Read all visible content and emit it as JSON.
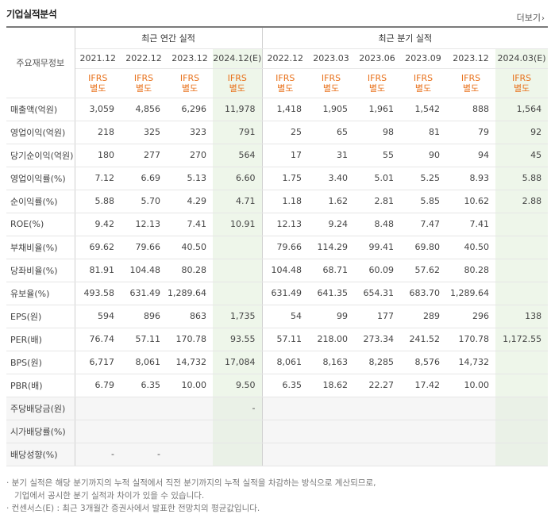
{
  "section_title": "기업실적분석",
  "more_label": "더보기",
  "header": {
    "label_col": "주요재무정보",
    "annual_title": "최근 연간 실적",
    "quarterly_title": "최근 분기 실적",
    "annual_periods": [
      "2021.12",
      "2022.12",
      "2023.12",
      "2024.12(E)"
    ],
    "quarterly_periods": [
      "2022.12",
      "2023.03",
      "2023.06",
      "2023.09",
      "2023.12",
      "2024.03(E)"
    ],
    "ifrs_line1": "IFRS",
    "ifrs_line2": "별도"
  },
  "rows": [
    {
      "label": "매출액(억원)",
      "values": [
        "3,059",
        "4,856",
        "6,296",
        "11,978",
        "1,418",
        "1,905",
        "1,961",
        "1,542",
        "888",
        "1,564"
      ]
    },
    {
      "label": "영업이익(억원)",
      "values": [
        "218",
        "325",
        "323",
        "791",
        "25",
        "65",
        "98",
        "81",
        "79",
        "92"
      ]
    },
    {
      "label": "당기순이익(억원)",
      "values": [
        "180",
        "277",
        "270",
        "564",
        "17",
        "31",
        "55",
        "90",
        "94",
        "45"
      ]
    },
    {
      "label": "영업이익률(%)",
      "values": [
        "7.12",
        "6.69",
        "5.13",
        "6.60",
        "1.75",
        "3.40",
        "5.01",
        "5.25",
        "8.93",
        "5.88"
      ]
    },
    {
      "label": "순이익률(%)",
      "values": [
        "5.88",
        "5.70",
        "4.29",
        "4.71",
        "1.18",
        "1.62",
        "2.81",
        "5.85",
        "10.62",
        "2.88"
      ]
    },
    {
      "label": "ROE(%)",
      "values": [
        "9.42",
        "12.13",
        "7.41",
        "10.91",
        "12.13",
        "9.24",
        "8.48",
        "7.47",
        "7.41",
        ""
      ]
    },
    {
      "label": "부채비율(%)",
      "values": [
        "69.62",
        "79.66",
        "40.50",
        "",
        "79.66",
        "114.29",
        "99.41",
        "69.80",
        "40.50",
        ""
      ]
    },
    {
      "label": "당좌비율(%)",
      "values": [
        "81.91",
        "104.48",
        "80.28",
        "",
        "104.48",
        "68.71",
        "60.09",
        "57.62",
        "80.28",
        ""
      ]
    },
    {
      "label": "유보율(%)",
      "values": [
        "493.58",
        "631.49",
        "1,289.64",
        "",
        "631.49",
        "641.35",
        "654.31",
        "683.70",
        "1,289.64",
        ""
      ]
    },
    {
      "label": "EPS(원)",
      "values": [
        "594",
        "896",
        "863",
        "1,735",
        "54",
        "99",
        "177",
        "289",
        "296",
        "138"
      ]
    },
    {
      "label": "PER(배)",
      "values": [
        "76.74",
        "57.11",
        "170.78",
        "93.55",
        "57.11",
        "218.00",
        "273.34",
        "241.52",
        "170.78",
        "1,172.55"
      ]
    },
    {
      "label": "BPS(원)",
      "values": [
        "6,717",
        "8,061",
        "14,732",
        "17,084",
        "8,061",
        "8,163",
        "8,285",
        "8,576",
        "14,732",
        ""
      ]
    },
    {
      "label": "PBR(배)",
      "values": [
        "6.79",
        "6.35",
        "10.00",
        "9.50",
        "6.35",
        "18.62",
        "22.27",
        "17.42",
        "10.00",
        ""
      ]
    }
  ],
  "dividend_rows": [
    {
      "label": "주당배당금(원)",
      "values": [
        "",
        "",
        "",
        "-",
        "",
        "",
        "",
        "",
        "",
        ""
      ]
    },
    {
      "label": "시가배당률(%)",
      "values": [
        "",
        "",
        "",
        "",
        "",
        "",
        "",
        "",
        "",
        ""
      ]
    },
    {
      "label": "배당성향(%)",
      "values": [
        "-",
        "-",
        "",
        "",
        "",
        "",
        "",
        "",
        "",
        ""
      ]
    }
  ],
  "notes": {
    "line1": "· 분기 실적은 해당 분기까지의 누적 실적에서 직전 분기까지의 누적 실적을 차감하는 방식으로 계산되므로,",
    "line2": "기업에서 공시한 분기 실적과 차이가 있을 수 있습니다.",
    "line3": "· 컨센서스(E) : 최근 3개월간 증권사에서 발표한 전망치의 평균값입니다."
  }
}
